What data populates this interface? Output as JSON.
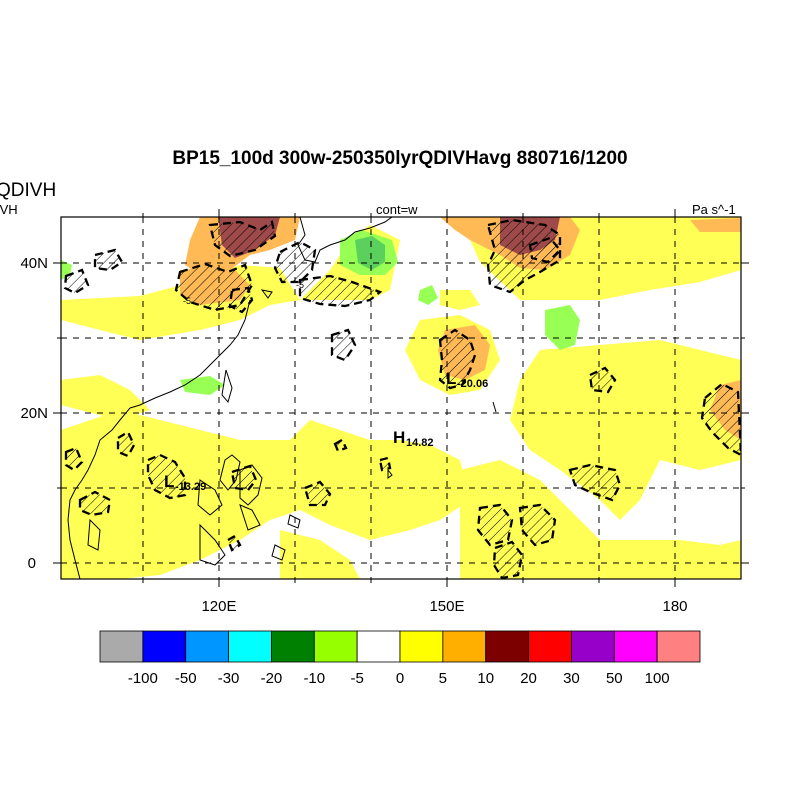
{
  "header": {
    "title": "BP15_100d 300w-250350lyrQDIVHavg  880716/1200",
    "left_title_main": "QDIVH",
    "left_title_sub": "IVH",
    "center_subtitle": "cont=w",
    "units": "Pa s^-1"
  },
  "axes": {
    "y_ticks": [
      "40N",
      "20N",
      "0"
    ],
    "x_ticks": [
      "120E",
      "150E",
      "180"
    ],
    "lon_range": [
      102,
      191
    ],
    "lat_range": [
      -2,
      46
    ]
  },
  "annotations": {
    "low1_letter": "L",
    "low1_value": "-13.29",
    "low2_letter": "L",
    "low2_value": "-20.06",
    "high1_letter": "H",
    "high1_value": "14.82",
    "contour_label_a": "-5",
    "contour_label_b": "-5"
  },
  "colorbar": {
    "colors": [
      "#aaaaaa",
      "#0000ff",
      "#0096ff",
      "#00ffff",
      "#008000",
      "#96ff00",
      "#ffffff",
      "#ffff00",
      "#ffaf00",
      "#7d0000",
      "#ff0000",
      "#9600c8",
      "#ff00ff",
      "#ff8080"
    ],
    "labels": [
      "-100",
      "-50",
      "-30",
      "-20",
      "-10",
      "-5",
      "0",
      "5",
      "10",
      "20",
      "30",
      "50",
      "100"
    ]
  },
  "field_colors": {
    "yellow": "#ffff55",
    "orange": "#ffba55",
    "dark_red": "#9e4a4a",
    "green": "#98ff55",
    "medium_green": "#5cd05c"
  }
}
